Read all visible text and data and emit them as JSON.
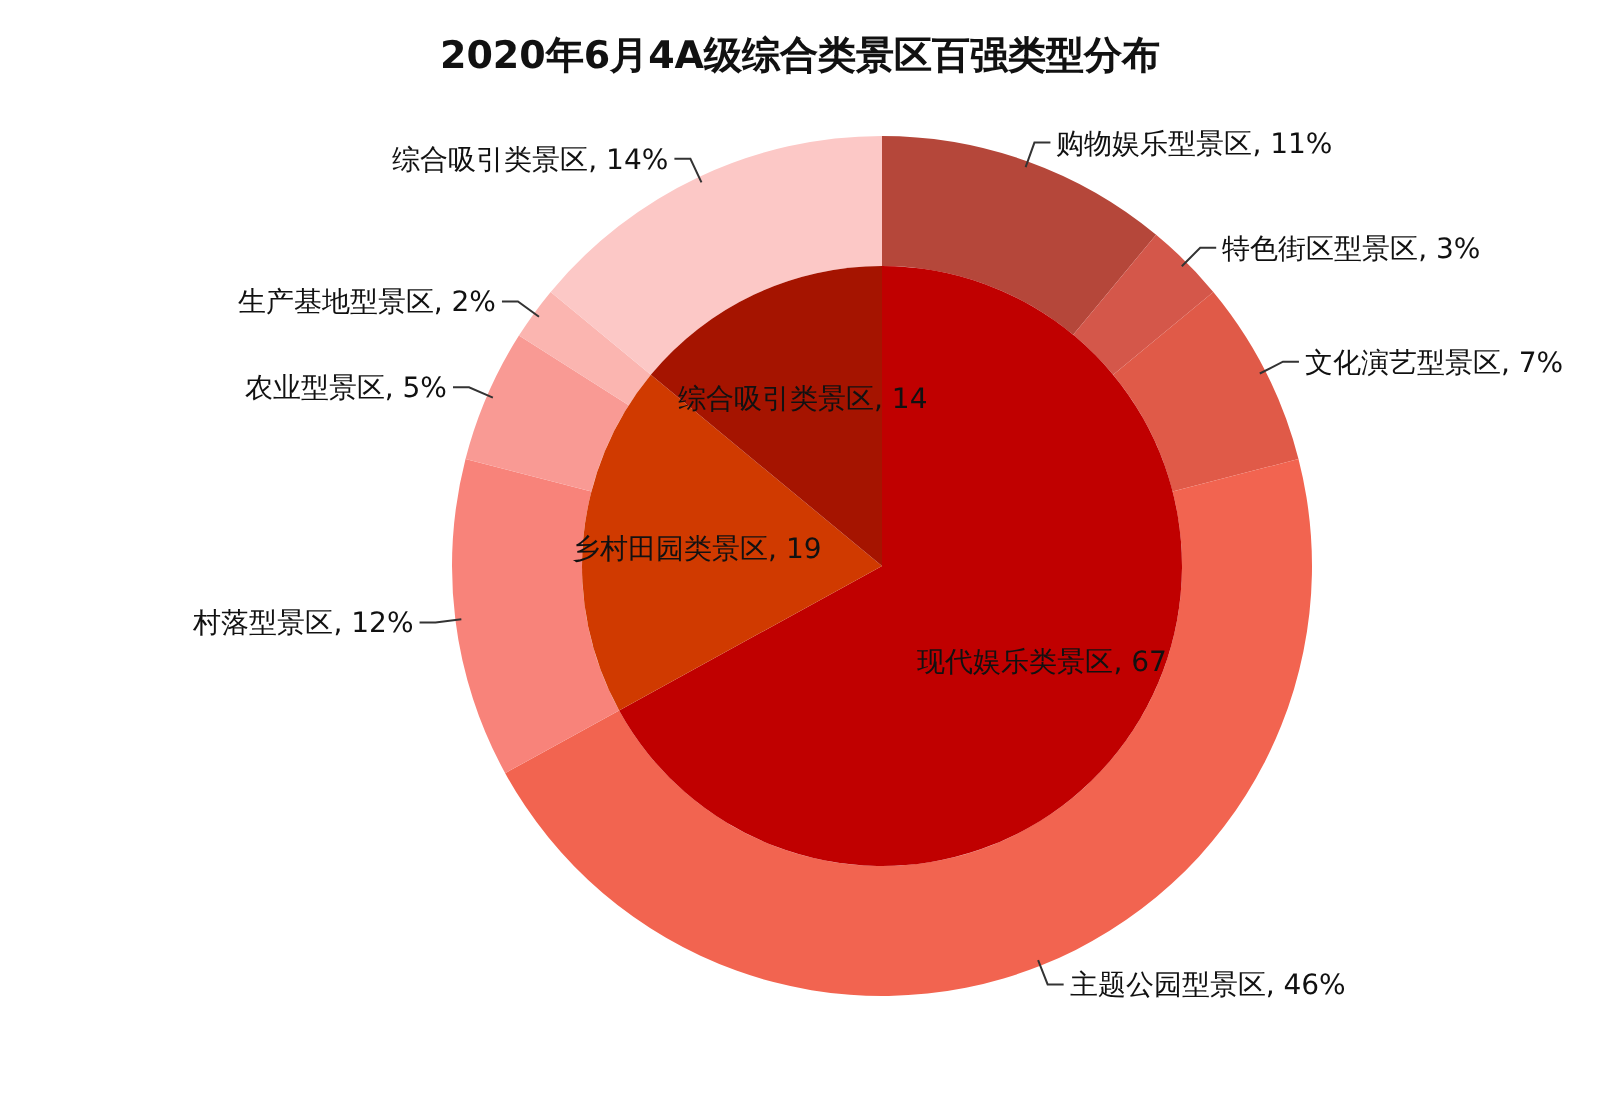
{
  "chart_data": [
    {
      "type": "donut",
      "title": "2020年6月4A级综合类景区百强类型分布",
      "categories": [
        "购物娱乐型景区",
        "特色街区型景区",
        "文化演艺型景区",
        "主题公园型景区",
        "村落型景区",
        "农业型景区",
        "生产基地型景区",
        "综合吸引类景区"
      ],
      "values": [
        11,
        3,
        7,
        46,
        12,
        5,
        2,
        14
      ],
      "value_labels": [
        "11%",
        "3%",
        "7%",
        "46%",
        "12%",
        "5%",
        "2%",
        "14%"
      ],
      "colors": [
        "#b5473a",
        "#d4574a",
        "#e05a48",
        "#f26450",
        "#f8837a",
        "#f99a94",
        "#fbb5b0",
        "#fcc8c6"
      ]
    },
    {
      "type": "pie",
      "categories": [
        "现代娱乐类景区",
        "乡村田园类景区",
        "综合吸引类景区"
      ],
      "values": [
        67,
        19,
        14
      ],
      "value_labels": [
        "67",
        "19",
        "14"
      ],
      "colors": [
        "#c00000",
        "#d03a00",
        "#a51400"
      ]
    }
  ]
}
